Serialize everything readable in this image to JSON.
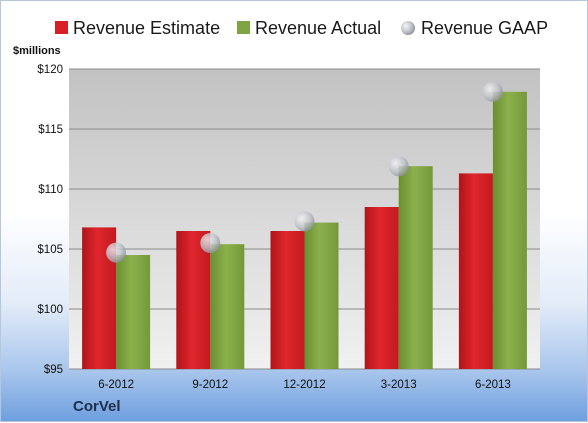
{
  "company": "CorVel",
  "unit_label": "$millions",
  "colors": {
    "estimate": "#d81f26",
    "actual": "#7ea342",
    "gaap": "#b8bcc4",
    "plot_bg_top": "#c2c2c2",
    "plot_bg_bottom": "#f1f1f1"
  },
  "chart_data": {
    "type": "bar",
    "title": "",
    "xlabel": "",
    "ylabel": "$millions",
    "categories": [
      "6-2012",
      "9-2012",
      "12-2012",
      "3-2013",
      "6-2013"
    ],
    "series": [
      {
        "name": "Revenue Estimate",
        "kind": "bar",
        "values": [
          106.8,
          106.5,
          106.5,
          108.5,
          111.3
        ]
      },
      {
        "name": "Revenue Actual",
        "kind": "bar",
        "values": [
          104.5,
          105.4,
          107.2,
          111.9,
          118.1
        ]
      },
      {
        "name": "Revenue GAAP",
        "kind": "marker",
        "values": [
          104.7,
          105.5,
          107.3,
          111.9,
          118.1
        ]
      }
    ],
    "ylim": [
      95,
      120
    ],
    "yticks": [
      95,
      100,
      105,
      110,
      115,
      120
    ],
    "ytick_labels": [
      "$95",
      "$100",
      "$105",
      "$110",
      "$115",
      "$120"
    ],
    "grid": true,
    "legend_position": "top"
  }
}
